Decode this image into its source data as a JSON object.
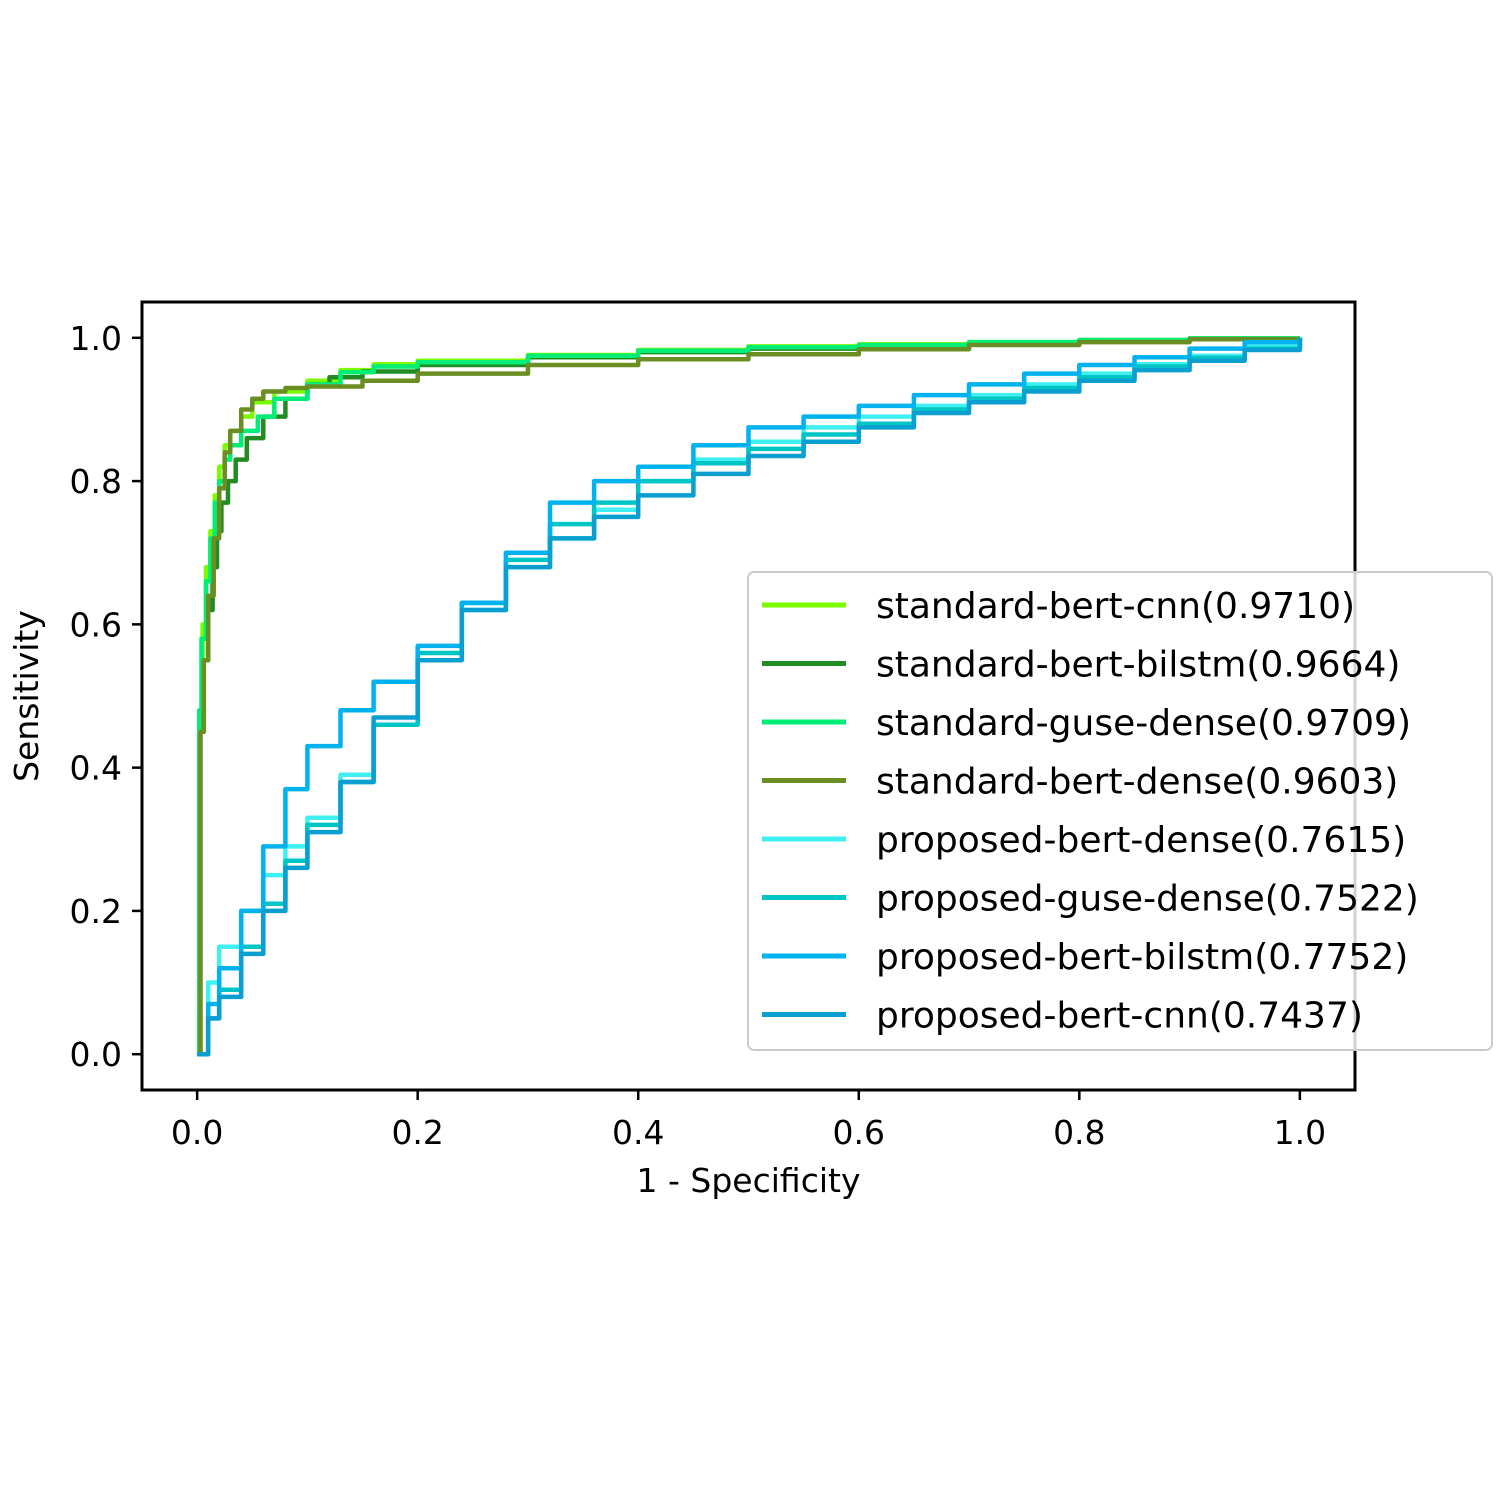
{
  "chart_data": {
    "type": "line",
    "xlabel": "1 - Specificity",
    "ylabel": "Sensitivity",
    "xlim": [
      -0.05,
      1.05
    ],
    "ylim": [
      -0.05,
      1.05
    ],
    "xticks": [
      "0.0",
      "0.2",
      "0.4",
      "0.6",
      "0.8",
      "1.0"
    ],
    "yticks": [
      "0.0",
      "0.2",
      "0.4",
      "0.6",
      "0.8",
      "1.0"
    ],
    "grid": false,
    "legend_position": "center-right",
    "series": [
      {
        "name": "standard-bert-cnn(0.9710)",
        "color": "#7cfc00",
        "x": [
          0,
          0.002,
          0.005,
          0.008,
          0.012,
          0.016,
          0.02,
          0.025,
          0.03,
          0.04,
          0.05,
          0.07,
          0.1,
          0.13,
          0.16,
          0.2,
          0.3,
          0.4,
          0.5,
          0.6,
          0.7,
          0.8,
          0.9,
          1.0
        ],
        "y": [
          0,
          0.47,
          0.6,
          0.68,
          0.73,
          0.78,
          0.82,
          0.85,
          0.87,
          0.89,
          0.91,
          0.925,
          0.94,
          0.955,
          0.963,
          0.968,
          0.976,
          0.983,
          0.988,
          0.991,
          0.994,
          0.997,
          0.999,
          1.0
        ]
      },
      {
        "name": "standard-bert-bilstm(0.9664)",
        "color": "#228b22",
        "x": [
          0,
          0.003,
          0.006,
          0.01,
          0.014,
          0.018,
          0.022,
          0.028,
          0.035,
          0.045,
          0.06,
          0.08,
          0.1,
          0.12,
          0.15,
          0.2,
          0.3,
          0.4,
          0.5,
          0.6,
          0.7,
          0.8,
          0.9,
          1.0
        ],
        "y": [
          0,
          0.45,
          0.55,
          0.62,
          0.68,
          0.73,
          0.77,
          0.8,
          0.83,
          0.86,
          0.89,
          0.915,
          0.935,
          0.945,
          0.953,
          0.962,
          0.973,
          0.98,
          0.985,
          0.989,
          0.993,
          0.996,
          0.999,
          1.0
        ]
      },
      {
        "name": "standard-guse-dense(0.9709)",
        "color": "#00ee76",
        "x": [
          0,
          0.002,
          0.004,
          0.008,
          0.012,
          0.016,
          0.02,
          0.025,
          0.03,
          0.04,
          0.055,
          0.07,
          0.1,
          0.13,
          0.16,
          0.2,
          0.3,
          0.4,
          0.5,
          0.6,
          0.7,
          0.8,
          0.9,
          1.0
        ],
        "y": [
          0,
          0.48,
          0.58,
          0.66,
          0.72,
          0.77,
          0.8,
          0.83,
          0.85,
          0.87,
          0.89,
          0.915,
          0.935,
          0.952,
          0.96,
          0.966,
          0.975,
          0.982,
          0.987,
          0.99,
          0.994,
          0.997,
          0.999,
          1.0
        ]
      },
      {
        "name": "standard-bert-dense(0.9603)",
        "color": "#6b8e23",
        "x": [
          0,
          0.003,
          0.006,
          0.01,
          0.015,
          0.02,
          0.025,
          0.03,
          0.04,
          0.05,
          0.06,
          0.08,
          0.1,
          0.15,
          0.2,
          0.3,
          0.4,
          0.5,
          0.6,
          0.7,
          0.8,
          0.9,
          1.0
        ],
        "y": [
          0,
          0.45,
          0.55,
          0.64,
          0.72,
          0.79,
          0.84,
          0.87,
          0.9,
          0.915,
          0.925,
          0.93,
          0.932,
          0.94,
          0.95,
          0.962,
          0.97,
          0.977,
          0.984,
          0.99,
          0.994,
          0.998,
          1.0
        ]
      },
      {
        "name": "proposed-bert-dense(0.7615)",
        "color": "#40f0f0",
        "x": [
          0,
          0.01,
          0.02,
          0.04,
          0.06,
          0.08,
          0.1,
          0.13,
          0.16,
          0.2,
          0.24,
          0.28,
          0.32,
          0.36,
          0.4,
          0.45,
          0.5,
          0.55,
          0.6,
          0.65,
          0.7,
          0.75,
          0.8,
          0.85,
          0.9,
          0.95,
          1.0
        ],
        "y": [
          0,
          0.1,
          0.15,
          0.2,
          0.25,
          0.29,
          0.33,
          0.39,
          0.46,
          0.55,
          0.62,
          0.68,
          0.72,
          0.76,
          0.8,
          0.83,
          0.855,
          0.875,
          0.89,
          0.905,
          0.92,
          0.935,
          0.95,
          0.963,
          0.975,
          0.988,
          1.0
        ]
      },
      {
        "name": "proposed-guse-dense(0.7522)",
        "color": "#00c5c5",
        "x": [
          0,
          0.01,
          0.02,
          0.04,
          0.06,
          0.08,
          0.1,
          0.13,
          0.16,
          0.2,
          0.24,
          0.28,
          0.32,
          0.36,
          0.4,
          0.45,
          0.5,
          0.55,
          0.6,
          0.65,
          0.7,
          0.75,
          0.8,
          0.85,
          0.9,
          0.95,
          1.0
        ],
        "y": [
          0,
          0.05,
          0.09,
          0.15,
          0.21,
          0.27,
          0.32,
          0.38,
          0.46,
          0.56,
          0.63,
          0.69,
          0.74,
          0.77,
          0.8,
          0.825,
          0.845,
          0.865,
          0.88,
          0.9,
          0.915,
          0.93,
          0.945,
          0.96,
          0.972,
          0.985,
          1.0
        ]
      },
      {
        "name": "proposed-bert-bilstm(0.7752)",
        "color": "#00b2ee",
        "x": [
          0,
          0.01,
          0.02,
          0.04,
          0.06,
          0.08,
          0.1,
          0.13,
          0.16,
          0.2,
          0.24,
          0.28,
          0.32,
          0.36,
          0.4,
          0.45,
          0.5,
          0.55,
          0.6,
          0.65,
          0.7,
          0.75,
          0.8,
          0.85,
          0.9,
          0.95,
          1.0
        ],
        "y": [
          0,
          0.07,
          0.12,
          0.2,
          0.29,
          0.37,
          0.43,
          0.48,
          0.52,
          0.57,
          0.63,
          0.7,
          0.77,
          0.8,
          0.82,
          0.85,
          0.875,
          0.89,
          0.905,
          0.92,
          0.935,
          0.95,
          0.962,
          0.973,
          0.985,
          0.994,
          1.0
        ]
      },
      {
        "name": "proposed-bert-cnn(0.7437)",
        "color": "#0a9fd0",
        "x": [
          0,
          0.01,
          0.02,
          0.04,
          0.06,
          0.08,
          0.1,
          0.13,
          0.16,
          0.2,
          0.24,
          0.28,
          0.32,
          0.36,
          0.4,
          0.45,
          0.5,
          0.55,
          0.6,
          0.65,
          0.7,
          0.75,
          0.8,
          0.85,
          0.9,
          0.95,
          1.0
        ],
        "y": [
          0,
          0.05,
          0.08,
          0.14,
          0.2,
          0.26,
          0.31,
          0.38,
          0.47,
          0.55,
          0.62,
          0.68,
          0.72,
          0.75,
          0.78,
          0.81,
          0.835,
          0.855,
          0.875,
          0.895,
          0.91,
          0.925,
          0.94,
          0.955,
          0.968,
          0.983,
          1.0
        ]
      }
    ]
  }
}
